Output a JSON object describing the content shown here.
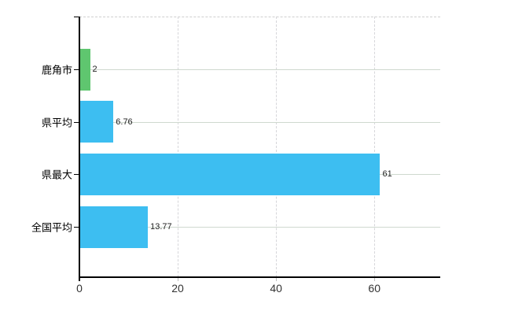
{
  "chart_data": {
    "type": "bar",
    "orientation": "horizontal",
    "title": "",
    "xlabel": "",
    "ylabel": "",
    "categories": [
      "鹿角市",
      "県平均",
      "県最大",
      "全国平均"
    ],
    "values": [
      2,
      6.76,
      61,
      13.77
    ],
    "value_labels": [
      "2",
      "6.76",
      "61",
      "13.77"
    ],
    "series": [
      {
        "name": "",
        "values": [
          2,
          6.76,
          61,
          13.77
        ]
      }
    ],
    "bar_colors": [
      "#5fc66f",
      "#3dbef1",
      "#3dbef1",
      "#3dbef1"
    ],
    "x_ticks": [
      0,
      20,
      40,
      60
    ],
    "x_tick_labels": [
      "0",
      "20",
      "40",
      "60"
    ],
    "xlim": [
      0,
      73.4
    ],
    "grid": true,
    "gridline_color_horizontal": "#cfd9cf",
    "gridline_color_vertical": "#d6d6da",
    "plot_border_top_style": "dashed",
    "axis_color": "#000000",
    "legend": false,
    "legend_position": "none",
    "background_color": "#ffffff"
  }
}
